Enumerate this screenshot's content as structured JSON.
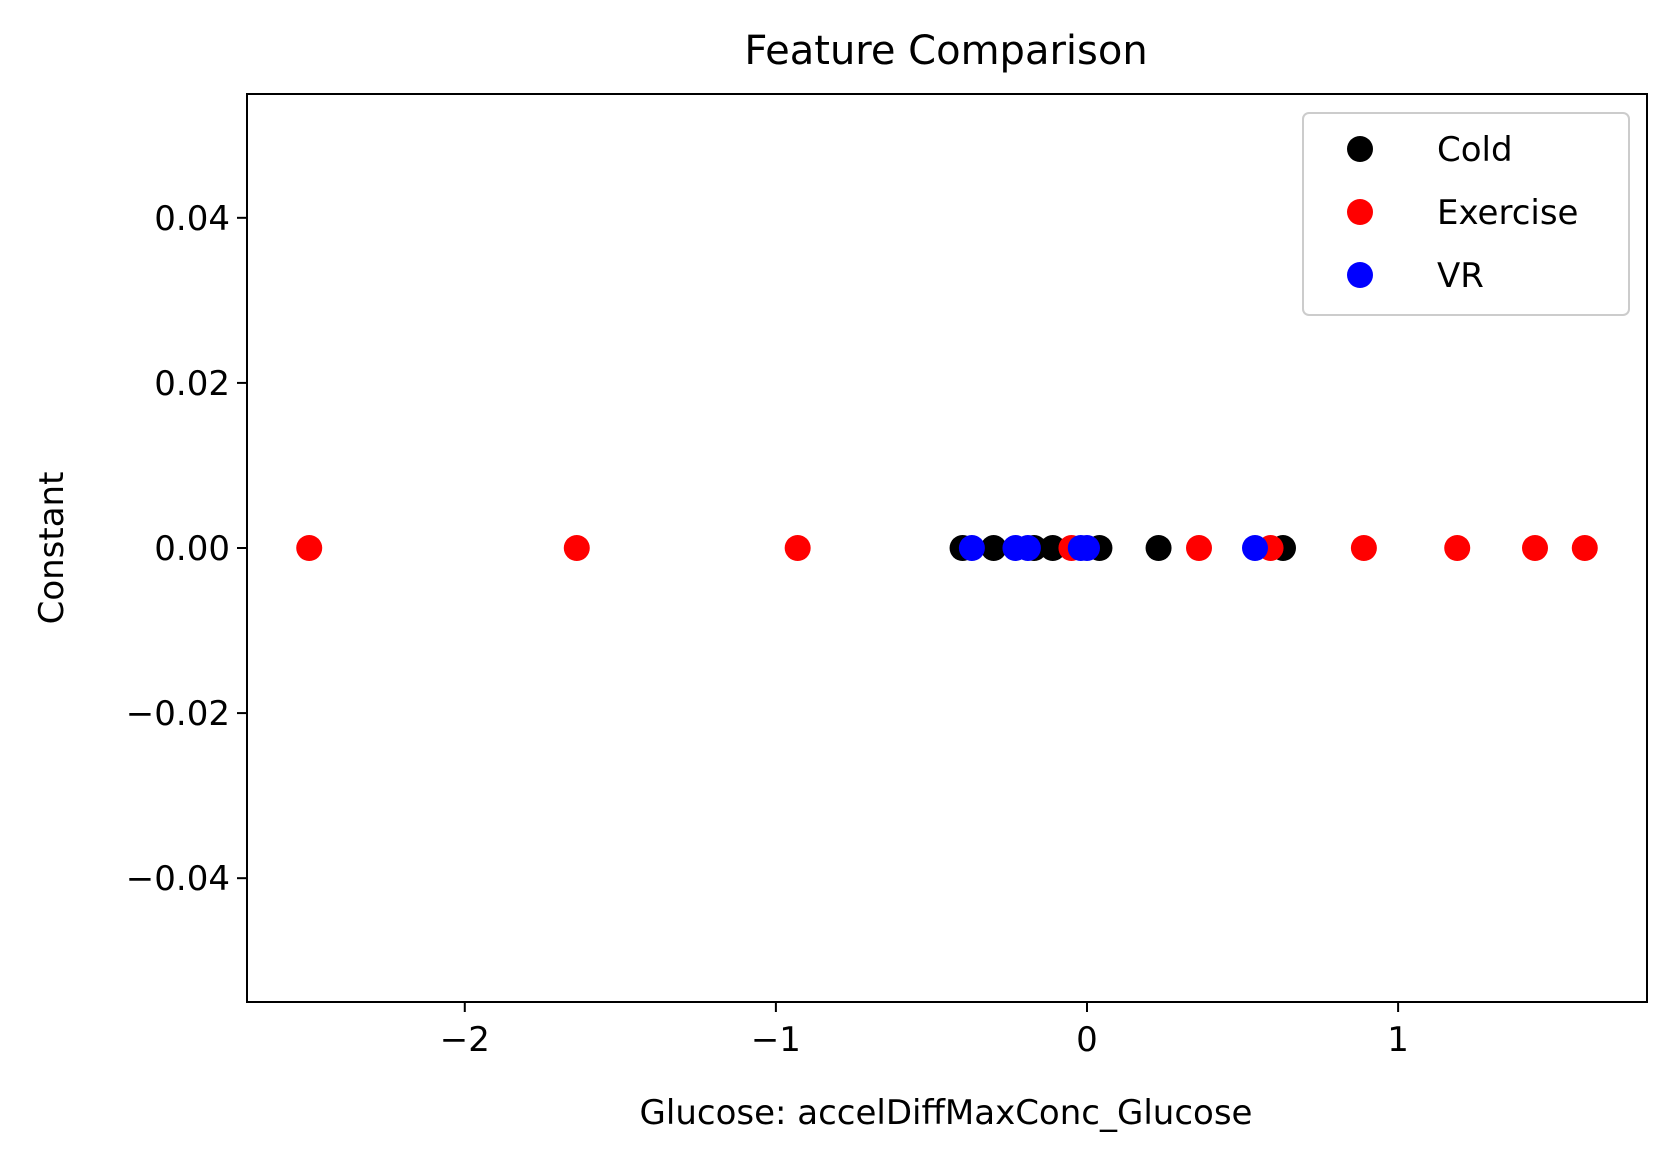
{
  "chart_data": {
    "type": "scatter",
    "title": "Feature Comparison",
    "xlabel": "Glucose: accelDiffMaxConc_Glucose",
    "ylabel": "Constant",
    "xlim": [
      -2.7,
      1.8
    ],
    "ylim": [
      -0.055,
      0.055
    ],
    "x_ticks": [
      {
        "value": -2,
        "label": "−2"
      },
      {
        "value": -1,
        "label": "−1"
      },
      {
        "value": 0,
        "label": "0"
      },
      {
        "value": 1,
        "label": "1"
      }
    ],
    "y_ticks": [
      {
        "value": 0.04,
        "label": "0.04"
      },
      {
        "value": 0.02,
        "label": "0.02"
      },
      {
        "value": 0.0,
        "label": "0.00"
      },
      {
        "value": -0.02,
        "label": "−0.02"
      },
      {
        "value": -0.04,
        "label": "−0.04"
      }
    ],
    "grid": false,
    "legend_position": "top-right",
    "series": [
      {
        "name": "Cold",
        "color": "#000000",
        "points": [
          {
            "x": -0.4,
            "y": 0
          },
          {
            "x": -0.3,
            "y": 0
          },
          {
            "x": -0.17,
            "y": 0
          },
          {
            "x": -0.11,
            "y": 0
          },
          {
            "x": 0.04,
            "y": 0
          },
          {
            "x": 0.23,
            "y": 0
          },
          {
            "x": 0.63,
            "y": 0
          }
        ]
      },
      {
        "name": "Exercise",
        "color": "#ff0000",
        "points": [
          {
            "x": -2.5,
            "y": 0
          },
          {
            "x": -1.64,
            "y": 0
          },
          {
            "x": -0.93,
            "y": 0
          },
          {
            "x": -0.05,
            "y": 0
          },
          {
            "x": 0.36,
            "y": 0
          },
          {
            "x": 0.59,
            "y": 0
          },
          {
            "x": 0.89,
            "y": 0
          },
          {
            "x": 1.19,
            "y": 0
          },
          {
            "x": 1.44,
            "y": 0
          },
          {
            "x": 1.6,
            "y": 0
          }
        ]
      },
      {
        "name": "VR",
        "color": "#0000ff",
        "points": [
          {
            "x": -0.37,
            "y": 0
          },
          {
            "x": -0.23,
            "y": 0
          },
          {
            "x": -0.19,
            "y": 0
          },
          {
            "x": -0.02,
            "y": 0
          },
          {
            "x": 0.0,
            "y": 0
          },
          {
            "x": 0.54,
            "y": 0
          }
        ]
      }
    ]
  }
}
